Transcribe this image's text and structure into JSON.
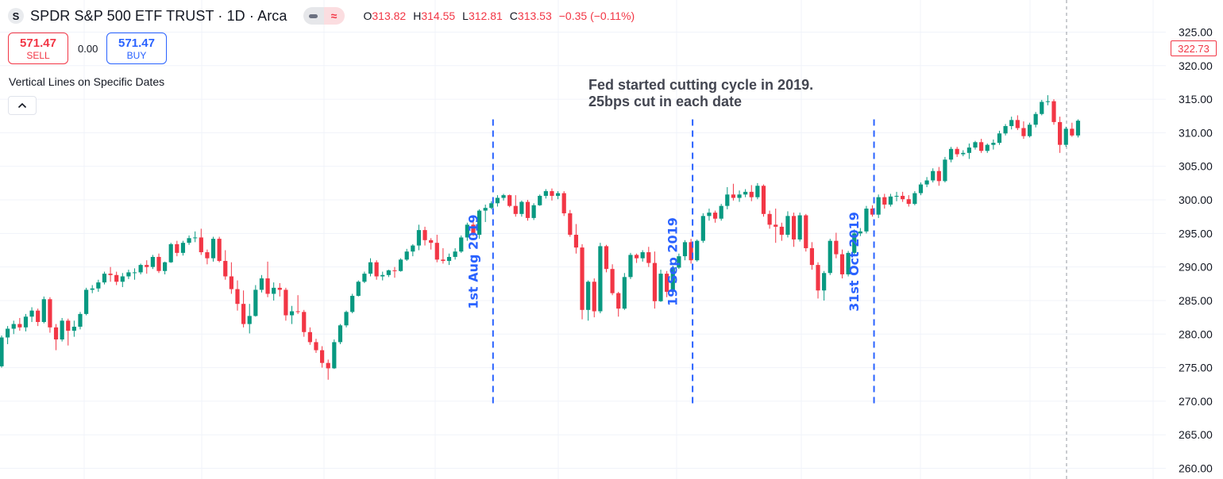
{
  "header": {
    "logo_letter": "S",
    "title": "SPDR S&P 500 ETF TRUST · 1D · Arca",
    "pill_icon_1": "minus-icon",
    "pill_icon_2": "wave-icon",
    "wave_glyph": "≈",
    "ohlc": {
      "o_label": "O",
      "o_value": "313.82",
      "h_label": "H",
      "h_value": "314.55",
      "l_label": "L",
      "l_value": "312.81",
      "c_label": "C",
      "c_value": "313.53",
      "change": "−0.35 (−0.11%)"
    }
  },
  "trade": {
    "sell_price": "571.47",
    "sell_label": "SELL",
    "spread": "0.00",
    "buy_price": "571.47",
    "buy_label": "BUY"
  },
  "indicator": {
    "name": "Vertical Lines on Specific Dates",
    "collapse_icon": "chevron-up-icon"
  },
  "annotation": {
    "line1": "Fed started cutting cycle in 2019.",
    "line2": "25bps cut in each date"
  },
  "price_axis": {
    "ticks": [
      "325.00",
      "320.00",
      "315.00",
      "310.00",
      "305.00",
      "300.00",
      "295.00",
      "290.00",
      "285.00",
      "280.00",
      "275.00",
      "270.00",
      "265.00",
      "260.00"
    ],
    "last_price": "322.73"
  },
  "colors": {
    "up": "#089981",
    "down": "#f23645",
    "vline": "#2962ff",
    "grid": "#f0f3fa",
    "text": "#131722"
  },
  "chart_data": {
    "type": "candlestick",
    "y_range": [
      259,
      327
    ],
    "markers": [
      {
        "label": "1st Aug 2019",
        "index": 81
      },
      {
        "label": "19 Sep 2019",
        "index": 114
      },
      {
        "label": "31st Oct 2019",
        "index": 144
      }
    ],
    "candles": [
      [
        275.2,
        279.8,
        275.0,
        279.5
      ],
      [
        279.5,
        281.2,
        278.5,
        280.8
      ],
      [
        280.8,
        282.0,
        280.0,
        281.5
      ],
      [
        281.5,
        282.4,
        280.5,
        281.0
      ],
      [
        281.0,
        283.0,
        280.4,
        282.6
      ],
      [
        282.6,
        284.0,
        281.8,
        283.5
      ],
      [
        283.5,
        283.8,
        281.2,
        281.8
      ],
      [
        281.8,
        285.6,
        281.6,
        285.2
      ],
      [
        285.2,
        285.5,
        280.2,
        281.0
      ],
      [
        281.0,
        281.5,
        277.6,
        279.2
      ],
      [
        279.2,
        282.4,
        278.9,
        282.0
      ],
      [
        282.0,
        282.3,
        278.3,
        280.5
      ],
      [
        280.5,
        282.0,
        279.6,
        281.1
      ],
      [
        281.1,
        283.3,
        280.7,
        283.0
      ],
      [
        283.0,
        286.9,
        282.8,
        286.6
      ],
      [
        286.6,
        287.3,
        286.1,
        286.8
      ],
      [
        286.8,
        288.1,
        286.3,
        287.7
      ],
      [
        287.7,
        289.3,
        287.4,
        289.0
      ],
      [
        289.0,
        290.0,
        287.8,
        288.8
      ],
      [
        288.8,
        289.3,
        287.3,
        287.8
      ],
      [
        287.8,
        289.1,
        287.0,
        288.6
      ],
      [
        288.6,
        289.6,
        288.2,
        289.2
      ],
      [
        289.2,
        289.8,
        288.1,
        289.2
      ],
      [
        289.2,
        290.5,
        288.9,
        290.3
      ],
      [
        290.3,
        291.0,
        289.0,
        290.0
      ],
      [
        290.0,
        291.8,
        289.7,
        291.5
      ],
      [
        291.5,
        292.0,
        289.1,
        289.4
      ],
      [
        289.4,
        290.8,
        288.9,
        290.7
      ],
      [
        290.7,
        293.6,
        290.6,
        293.4
      ],
      [
        293.4,
        293.9,
        291.6,
        292.1
      ],
      [
        292.1,
        293.9,
        291.7,
        293.6
      ],
      [
        293.6,
        294.7,
        293.3,
        294.3
      ],
      [
        294.3,
        295.3,
        293.7,
        294.4
      ],
      [
        294.4,
        295.7,
        291.8,
        292.2
      ],
      [
        292.2,
        292.6,
        290.4,
        291.3
      ],
      [
        291.3,
        294.5,
        290.8,
        294.2
      ],
      [
        294.2,
        294.5,
        290.7,
        290.9
      ],
      [
        290.9,
        292.5,
        288.1,
        288.6
      ],
      [
        288.6,
        290.7,
        286.0,
        286.7
      ],
      [
        286.7,
        288.0,
        283.5,
        284.5
      ],
      [
        284.5,
        286.5,
        281.0,
        281.5
      ],
      [
        281.5,
        284.5,
        280.1,
        282.7
      ],
      [
        282.7,
        287.3,
        282.6,
        286.6
      ],
      [
        286.6,
        288.8,
        286.2,
        288.3
      ],
      [
        288.3,
        290.8,
        285.5,
        286.0
      ],
      [
        286.0,
        287.7,
        285.0,
        286.9
      ],
      [
        286.9,
        287.6,
        285.6,
        286.6
      ],
      [
        286.6,
        286.9,
        282.0,
        282.8
      ],
      [
        282.8,
        284.2,
        281.5,
        283.4
      ],
      [
        283.4,
        285.8,
        283.0,
        283.3
      ],
      [
        283.3,
        283.6,
        279.6,
        280.3
      ],
      [
        280.3,
        281.0,
        278.4,
        278.8
      ],
      [
        278.8,
        279.3,
        277.2,
        277.6
      ],
      [
        277.6,
        278.2,
        275.0,
        275.7
      ],
      [
        275.7,
        276.2,
        273.2,
        274.9
      ],
      [
        274.9,
        279.2,
        274.8,
        278.8
      ],
      [
        278.8,
        281.5,
        278.5,
        281.3
      ],
      [
        281.3,
        283.5,
        281.0,
        283.3
      ],
      [
        283.3,
        286.0,
        283.1,
        285.7
      ],
      [
        285.7,
        288.0,
        285.6,
        287.8
      ],
      [
        287.8,
        289.3,
        287.6,
        289.0
      ],
      [
        289.0,
        291.3,
        288.6,
        290.7
      ],
      [
        290.7,
        291.0,
        288.1,
        288.6
      ],
      [
        288.6,
        289.3,
        288.0,
        288.8
      ],
      [
        288.8,
        289.6,
        288.5,
        289.5
      ],
      [
        289.5,
        290.0,
        288.4,
        289.4
      ],
      [
        289.4,
        291.3,
        289.3,
        291.1
      ],
      [
        291.1,
        292.7,
        290.9,
        292.3
      ],
      [
        292.3,
        293.4,
        291.6,
        293.2
      ],
      [
        293.2,
        296.3,
        292.5,
        295.5
      ],
      [
        295.5,
        296.0,
        293.2,
        294.0
      ],
      [
        294.0,
        294.3,
        292.6,
        293.6
      ],
      [
        293.6,
        294.8,
        290.7,
        291.1
      ],
      [
        291.1,
        292.8,
        290.5,
        290.9
      ],
      [
        290.9,
        292.0,
        290.3,
        291.5
      ],
      [
        291.5,
        292.8,
        291.1,
        292.3
      ],
      [
        292.3,
        294.7,
        292.1,
        294.4
      ],
      [
        294.4,
        296.6,
        293.9,
        296.3
      ],
      [
        296.3,
        297.1,
        294.6,
        294.8
      ],
      [
        294.8,
        298.6,
        294.2,
        298.4
      ],
      [
        298.4,
        299.3,
        296.7,
        298.8
      ],
      [
        298.8,
        299.8,
        298.6,
        299.5
      ],
      [
        299.5,
        300.7,
        299.0,
        300.3
      ],
      [
        300.3,
        300.9,
        299.9,
        300.7
      ],
      [
        300.7,
        300.8,
        298.9,
        299.1
      ],
      [
        299.1,
        300.7,
        297.5,
        297.9
      ],
      [
        297.9,
        299.9,
        297.5,
        299.7
      ],
      [
        299.7,
        300.0,
        296.9,
        297.3
      ],
      [
        297.3,
        299.5,
        297.0,
        299.2
      ],
      [
        299.2,
        300.8,
        299.1,
        300.6
      ],
      [
        300.6,
        301.6,
        300.2,
        301.3
      ],
      [
        301.3,
        301.7,
        299.9,
        300.6
      ],
      [
        300.6,
        301.3,
        300.1,
        301.0
      ],
      [
        301.0,
        301.3,
        297.6,
        298.0
      ],
      [
        298.0,
        298.5,
        294.5,
        294.8
      ],
      [
        294.8,
        296.4,
        292.0,
        292.9
      ],
      [
        292.9,
        293.4,
        282.2,
        283.6
      ],
      [
        283.6,
        288.0,
        282.0,
        287.8
      ],
      [
        287.8,
        288.3,
        282.5,
        283.4
      ],
      [
        283.4,
        293.6,
        283.1,
        293.1
      ],
      [
        293.1,
        293.3,
        289.2,
        289.7
      ],
      [
        289.7,
        290.4,
        285.8,
        286.1
      ],
      [
        286.1,
        286.3,
        282.6,
        283.8
      ],
      [
        283.8,
        289.1,
        283.6,
        288.5
      ],
      [
        288.5,
        292.1,
        288.2,
        291.8
      ],
      [
        291.8,
        292.0,
        290.6,
        291.3
      ],
      [
        291.3,
        292.5,
        290.8,
        292.2
      ],
      [
        292.2,
        293.0,
        290.0,
        290.6
      ],
      [
        290.6,
        292.3,
        283.8,
        284.9
      ],
      [
        284.9,
        289.6,
        284.8,
        289.0
      ],
      [
        289.0,
        289.4,
        285.5,
        286.3
      ],
      [
        286.3,
        290.2,
        285.8,
        289.9
      ],
      [
        289.9,
        292.0,
        289.7,
        291.6
      ],
      [
        291.6,
        294.0,
        291.0,
        293.7
      ],
      [
        293.7,
        294.2,
        290.5,
        291.0
      ],
      [
        291.0,
        294.1,
        290.8,
        293.9
      ],
      [
        293.9,
        298.0,
        293.6,
        297.6
      ],
      [
        297.6,
        298.7,
        296.9,
        298.1
      ],
      [
        298.1,
        298.4,
        296.6,
        297.2
      ],
      [
        297.2,
        299.4,
        296.9,
        299.1
      ],
      [
        299.1,
        301.9,
        298.6,
        300.8
      ],
      [
        300.8,
        302.4,
        299.9,
        300.3
      ],
      [
        300.3,
        301.4,
        299.7,
        300.8
      ],
      [
        300.8,
        301.6,
        300.4,
        301.2
      ],
      [
        301.2,
        302.2,
        299.8,
        300.4
      ],
      [
        300.4,
        302.5,
        300.1,
        302.1
      ],
      [
        302.1,
        302.3,
        297.5,
        297.9
      ],
      [
        297.9,
        298.4,
        295.7,
        296.3
      ],
      [
        296.3,
        298.7,
        293.6,
        296.0
      ],
      [
        296.0,
        296.6,
        293.9,
        294.8
      ],
      [
        294.8,
        298.3,
        294.4,
        297.6
      ],
      [
        297.6,
        298.1,
        293.0,
        294.1
      ],
      [
        294.1,
        298.1,
        293.8,
        297.7
      ],
      [
        297.7,
        297.9,
        292.3,
        292.8
      ],
      [
        292.8,
        293.7,
        289.6,
        290.3
      ],
      [
        290.3,
        290.7,
        285.3,
        286.5
      ],
      [
        286.5,
        289.4,
        285.0,
        289.1
      ],
      [
        289.1,
        294.2,
        288.8,
        293.9
      ],
      [
        293.9,
        295.1,
        291.3,
        291.9
      ],
      [
        291.9,
        292.6,
        288.3,
        288.9
      ],
      [
        288.9,
        292.4,
        288.6,
        292.1
      ],
      [
        292.1,
        295.6,
        291.8,
        295.0
      ],
      [
        295.0,
        295.8,
        294.6,
        295.3
      ],
      [
        295.3,
        299.1,
        295.0,
        298.7
      ],
      [
        298.7,
        299.2,
        297.5,
        297.8
      ],
      [
        297.8,
        300.8,
        297.3,
        300.4
      ],
      [
        300.4,
        300.9,
        298.7,
        299.3
      ],
      [
        299.3,
        300.9,
        299.0,
        300.5
      ],
      [
        300.5,
        301.2,
        299.8,
        300.6
      ]
    ],
    "candles_late": [
      [
        300.6,
        301.2,
        299.7,
        300.1
      ],
      [
        300.1,
        300.7,
        299.0,
        299.4
      ],
      [
        299.4,
        301.3,
        299.2,
        301.0
      ],
      [
        301.0,
        302.6,
        300.7,
        302.3
      ],
      [
        302.3,
        303.4,
        301.9,
        302.9
      ],
      [
        302.9,
        304.7,
        302.6,
        304.3
      ],
      [
        304.3,
        304.9,
        302.1,
        302.8
      ],
      [
        302.8,
        306.4,
        302.6,
        306.0
      ],
      [
        306.0,
        307.9,
        305.6,
        307.6
      ],
      [
        307.6,
        307.9,
        306.4,
        306.8
      ],
      [
        306.8,
        307.4,
        306.5,
        307.0
      ],
      [
        307.0,
        308.4,
        306.1,
        307.8
      ],
      [
        307.8,
        308.8,
        307.5,
        308.6
      ],
      [
        308.6,
        309.1,
        307.0,
        307.3
      ],
      [
        307.3,
        308.4,
        307.0,
        308.2
      ],
      [
        308.2,
        309.0,
        307.5,
        308.5
      ],
      [
        308.5,
        310.3,
        308.2,
        309.9
      ],
      [
        309.9,
        311.3,
        309.6,
        311.0
      ],
      [
        311.0,
        312.4,
        310.5,
        311.9
      ],
      [
        311.9,
        312.6,
        310.4,
        310.7
      ],
      [
        310.7,
        311.7,
        309.1,
        309.5
      ],
      [
        309.5,
        311.5,
        309.3,
        311.2
      ],
      [
        311.2,
        313.1,
        310.8,
        312.8
      ],
      [
        312.8,
        314.9,
        312.6,
        314.6
      ],
      [
        314.6,
        315.6,
        314.1,
        314.7
      ],
      [
        314.7,
        315.0,
        311.2,
        311.6
      ],
      [
        311.6,
        312.4,
        307.0,
        308.2
      ],
      [
        308.2,
        310.9,
        307.9,
        310.6
      ],
      [
        310.6,
        311.5,
        309.4,
        309.6
      ],
      [
        309.6,
        312.0,
        309.3,
        311.8
      ]
    ]
  }
}
